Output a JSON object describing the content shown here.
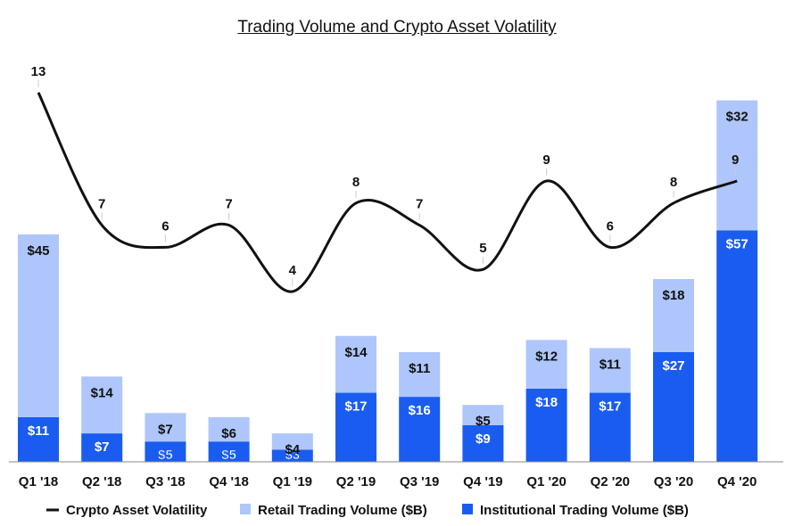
{
  "chart_data": {
    "type": "bar",
    "title": "Trading Volume and Crypto Asset Volatility",
    "categories": [
      "Q1 '18",
      "Q2 '18",
      "Q3 '18",
      "Q4 '18",
      "Q1 '19",
      "Q2 '19",
      "Q3 '19",
      "Q4 '19",
      "Q1 '20",
      "Q2 '20",
      "Q3 '20",
      "Q4 '20"
    ],
    "series": [
      {
        "name": "Institutional Trading Volume ($B)",
        "kind": "bar",
        "stack": "volume",
        "color": "#1a5cf0",
        "values": [
          11,
          7,
          5,
          5,
          3,
          17,
          16,
          9,
          18,
          17,
          27,
          57
        ],
        "labels": [
          "$11",
          "$7",
          "$5",
          "$5",
          "$3",
          "$17",
          "$16",
          "$9",
          "$18",
          "$17",
          "$27",
          "$57"
        ]
      },
      {
        "name": "Retail Trading Volume ($B)",
        "kind": "bar",
        "stack": "volume",
        "color": "#aec6fb",
        "values": [
          45,
          14,
          7,
          6,
          4,
          14,
          11,
          5,
          12,
          11,
          18,
          32
        ],
        "labels": [
          "$45",
          "$14",
          "$7",
          "$6",
          "$4",
          "$14",
          "$11",
          "$5",
          "$12",
          "$11",
          "$18",
          "$32"
        ]
      },
      {
        "name": "Crypto Asset Volatility",
        "kind": "line",
        "color": "#111111",
        "values": [
          13,
          7,
          6,
          7,
          4,
          8,
          7,
          5,
          9,
          6,
          8,
          9
        ],
        "labels": [
          "13",
          "7",
          "6",
          "7",
          "4",
          "8",
          "7",
          "5",
          "9",
          "6",
          "8",
          "9"
        ]
      }
    ],
    "legend": {
      "placement": "bottom",
      "items": [
        "Crypto Asset Volatility",
        "Retail Trading Volume ($B)",
        "Institutional Trading Volume ($B)"
      ]
    },
    "grid": false
  }
}
